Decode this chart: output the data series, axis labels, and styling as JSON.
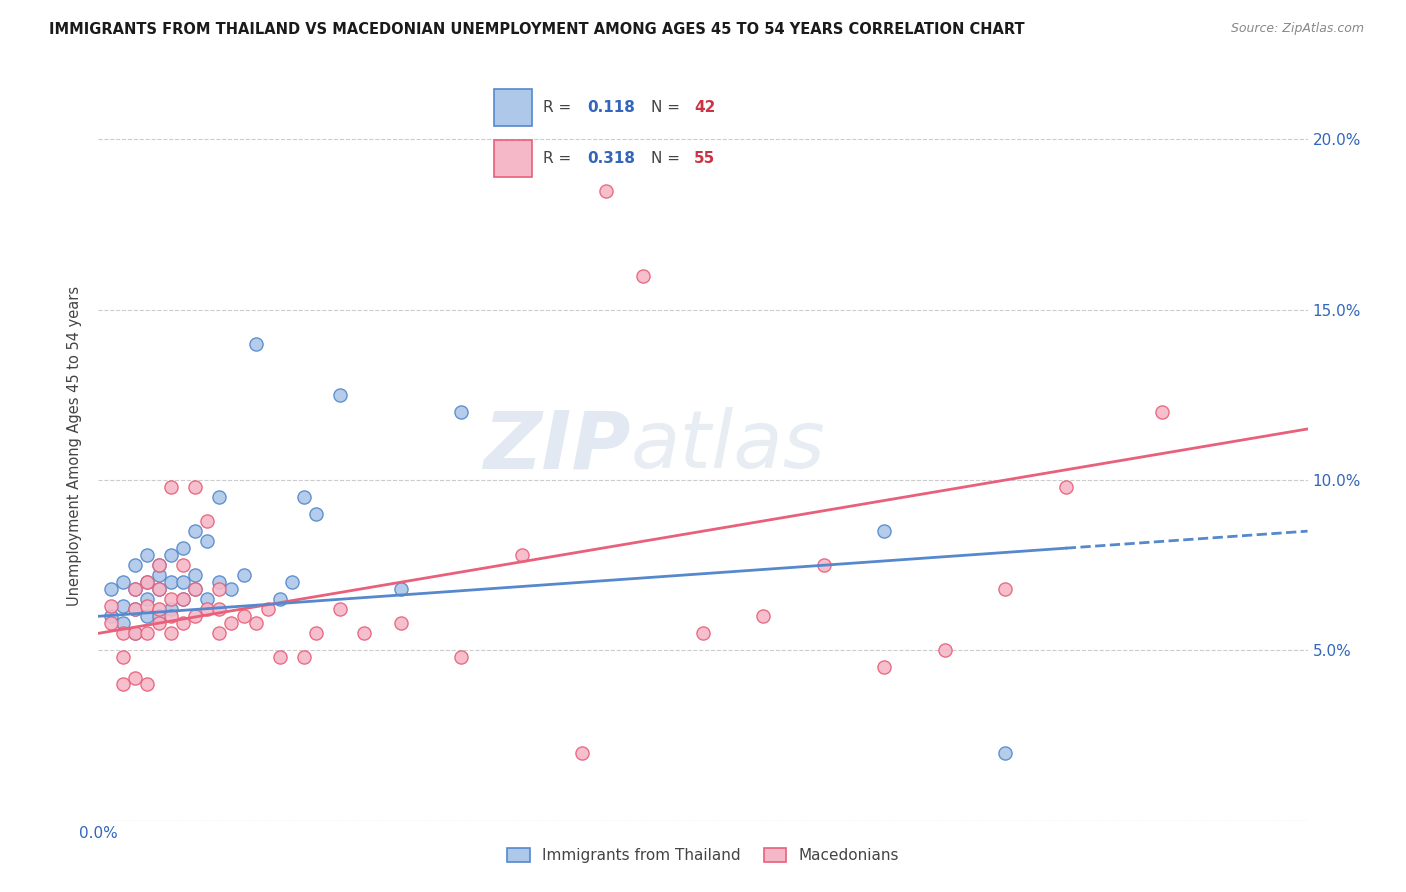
{
  "title": "IMMIGRANTS FROM THAILAND VS MACEDONIAN UNEMPLOYMENT AMONG AGES 45 TO 54 YEARS CORRELATION CHART",
  "source": "Source: ZipAtlas.com",
  "ylabel": "Unemployment Among Ages 45 to 54 years",
  "xlim": [
    0.0,
    0.1
  ],
  "ylim": [
    0.0,
    0.22
  ],
  "x_ticks": [
    0.0,
    0.02,
    0.04,
    0.06,
    0.08,
    0.1
  ],
  "x_tick_labels": [
    "0.0%",
    "",
    "",
    "",
    "",
    ""
  ],
  "y_ticks": [
    0.0,
    0.05,
    0.1,
    0.15,
    0.2
  ],
  "y_tick_labels_right": [
    "",
    "5.0%",
    "10.0%",
    "15.0%",
    "20.0%"
  ],
  "color_thailand": "#adc8e8",
  "color_macedonian": "#f5b8c8",
  "color_line_thailand": "#5588cc",
  "color_line_macedonian": "#e8607a",
  "watermark_zip": "ZIP",
  "watermark_atlas": "atlas",
  "thailand_scatter_x": [
    0.001,
    0.001,
    0.002,
    0.002,
    0.002,
    0.003,
    0.003,
    0.003,
    0.003,
    0.004,
    0.004,
    0.004,
    0.004,
    0.005,
    0.005,
    0.005,
    0.005,
    0.006,
    0.006,
    0.006,
    0.007,
    0.007,
    0.007,
    0.008,
    0.008,
    0.008,
    0.009,
    0.009,
    0.01,
    0.01,
    0.011,
    0.012,
    0.013,
    0.015,
    0.016,
    0.017,
    0.018,
    0.02,
    0.025,
    0.03,
    0.065,
    0.075
  ],
  "thailand_scatter_y": [
    0.06,
    0.068,
    0.058,
    0.063,
    0.07,
    0.055,
    0.062,
    0.068,
    0.075,
    0.06,
    0.065,
    0.07,
    0.078,
    0.06,
    0.068,
    0.072,
    0.075,
    0.062,
    0.07,
    0.078,
    0.065,
    0.07,
    0.08,
    0.068,
    0.072,
    0.085,
    0.065,
    0.082,
    0.07,
    0.095,
    0.068,
    0.072,
    0.14,
    0.065,
    0.07,
    0.095,
    0.09,
    0.125,
    0.068,
    0.12,
    0.085,
    0.02
  ],
  "macedonian_scatter_x": [
    0.001,
    0.001,
    0.002,
    0.002,
    0.002,
    0.003,
    0.003,
    0.003,
    0.003,
    0.004,
    0.004,
    0.004,
    0.004,
    0.005,
    0.005,
    0.005,
    0.005,
    0.006,
    0.006,
    0.006,
    0.006,
    0.007,
    0.007,
    0.007,
    0.008,
    0.008,
    0.008,
    0.009,
    0.009,
    0.01,
    0.01,
    0.01,
    0.011,
    0.012,
    0.013,
    0.014,
    0.015,
    0.017,
    0.018,
    0.02,
    0.022,
    0.025,
    0.03,
    0.035,
    0.04,
    0.042,
    0.045,
    0.05,
    0.055,
    0.06,
    0.065,
    0.07,
    0.075,
    0.08,
    0.088
  ],
  "macedonian_scatter_y": [
    0.058,
    0.063,
    0.04,
    0.048,
    0.055,
    0.042,
    0.055,
    0.062,
    0.068,
    0.04,
    0.055,
    0.063,
    0.07,
    0.058,
    0.062,
    0.068,
    0.075,
    0.055,
    0.06,
    0.065,
    0.098,
    0.058,
    0.065,
    0.075,
    0.06,
    0.068,
    0.098,
    0.062,
    0.088,
    0.055,
    0.062,
    0.068,
    0.058,
    0.06,
    0.058,
    0.062,
    0.048,
    0.048,
    0.055,
    0.062,
    0.055,
    0.058,
    0.048,
    0.078,
    0.02,
    0.185,
    0.16,
    0.055,
    0.06,
    0.075,
    0.045,
    0.05,
    0.068,
    0.098,
    0.12
  ],
  "thailand_line_x": [
    0.0,
    0.1
  ],
  "thailand_line_y": [
    0.06,
    0.085
  ],
  "macedonian_line_x": [
    0.0,
    0.1
  ],
  "macedonian_line_y": [
    0.055,
    0.115
  ]
}
